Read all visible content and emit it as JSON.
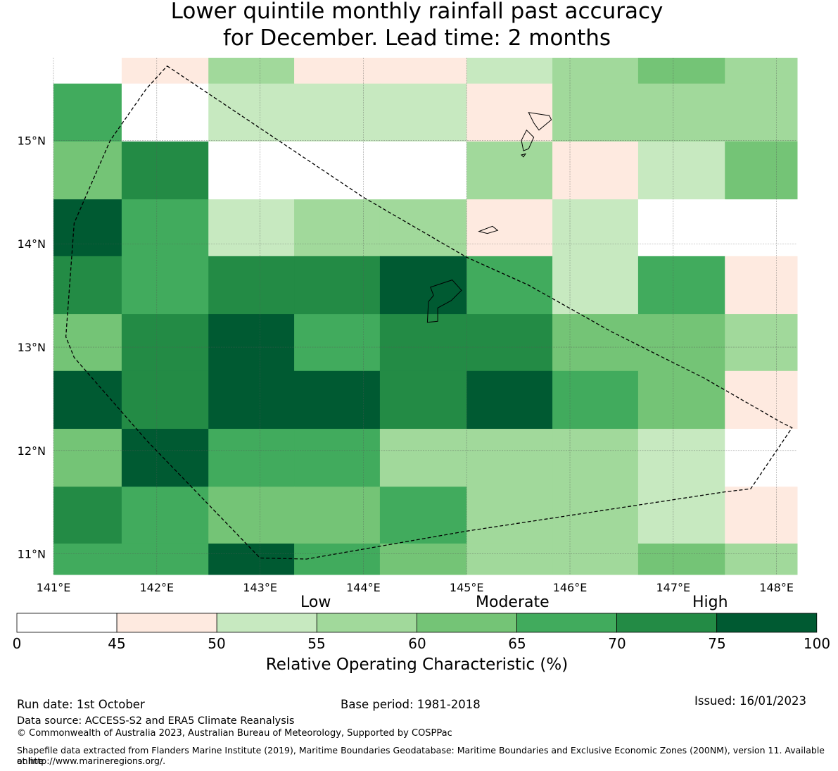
{
  "title": {
    "line1": "Lower quintile monthly rainfall past accuracy",
    "line2": "for December. Lead time: 2 months"
  },
  "map": {
    "lon_labels": [
      "141°E",
      "142°E",
      "143°E",
      "144°E",
      "145°E",
      "146°E",
      "147°E",
      "148°E"
    ],
    "lon_values": [
      141,
      142,
      143,
      144,
      145,
      146,
      147,
      148
    ],
    "lat_labels": [
      "15°N",
      "14°N",
      "13°N",
      "12°N",
      "11°N"
    ],
    "lat_values": [
      15,
      14,
      13,
      12,
      11
    ],
    "extent": {
      "lon": [
        141.0,
        148.2
      ],
      "lat": [
        10.8,
        15.8
      ]
    },
    "cell_lon_edges": [
      141.0,
      141.66,
      142.5,
      143.33,
      144.16,
      145.0,
      145.83,
      146.66,
      147.5,
      148.2
    ],
    "cell_lat_edges": [
      15.8,
      15.55,
      14.99,
      14.43,
      13.88,
      13.32,
      12.77,
      12.21,
      11.65,
      11.1,
      10.8
    ],
    "cells_roc": [
      [
        0,
        48,
        58,
        48,
        48,
        53,
        58,
        63,
        58
      ],
      [
        68,
        0,
        53,
        53,
        53,
        48,
        58,
        58,
        58
      ],
      [
        63,
        73,
        0,
        0,
        0,
        58,
        48,
        53,
        63
      ],
      [
        78,
        68,
        53,
        58,
        58,
        48,
        53,
        0,
        0
      ],
      [
        73,
        68,
        73,
        73,
        78,
        68,
        53,
        68,
        48
      ],
      [
        63,
        73,
        78,
        68,
        73,
        73,
        63,
        63,
        58
      ],
      [
        78,
        73,
        78,
        78,
        73,
        78,
        68,
        63,
        48
      ],
      [
        63,
        78,
        68,
        68,
        58,
        58,
        58,
        53,
        0
      ],
      [
        73,
        68,
        63,
        63,
        68,
        58,
        58,
        53,
        48
      ],
      [
        68,
        68,
        78,
        68,
        63,
        58,
        58,
        63,
        58
      ]
    ],
    "boundary_lonlat": [
      [
        142.1,
        15.72
      ],
      [
        144.0,
        14.45
      ],
      [
        145.0,
        13.87
      ],
      [
        145.6,
        13.6
      ],
      [
        146.4,
        13.15
      ],
      [
        147.3,
        12.7
      ],
      [
        148.05,
        12.27
      ],
      [
        148.15,
        12.22
      ],
      [
        147.75,
        11.63
      ],
      [
        147.5,
        11.6
      ],
      [
        145.0,
        11.22
      ],
      [
        143.45,
        10.95
      ],
      [
        143.0,
        10.96
      ],
      [
        141.9,
        12.1
      ],
      [
        141.2,
        12.9
      ],
      [
        141.12,
        13.1
      ],
      [
        141.2,
        14.2
      ],
      [
        141.55,
        15.0
      ],
      [
        141.9,
        15.5
      ],
      [
        142.1,
        15.72
      ]
    ],
    "islands_lonlat": [
      [
        [
          144.65,
          13.58
        ],
        [
          144.86,
          13.65
        ],
        [
          144.95,
          13.55
        ],
        [
          144.85,
          13.45
        ],
        [
          144.72,
          13.38
        ],
        [
          144.72,
          13.25
        ],
        [
          144.62,
          13.24
        ],
        [
          144.63,
          13.44
        ],
        [
          144.68,
          13.5
        ],
        [
          144.65,
          13.58
        ]
      ],
      [
        [
          145.6,
          15.27
        ],
        [
          145.65,
          15.17
        ],
        [
          145.7,
          15.1
        ],
        [
          145.82,
          15.2
        ],
        [
          145.8,
          15.24
        ],
        [
          145.6,
          15.27
        ]
      ],
      [
        [
          145.58,
          15.1
        ],
        [
          145.65,
          15.03
        ],
        [
          145.6,
          14.92
        ],
        [
          145.55,
          14.9
        ],
        [
          145.53,
          15.0
        ],
        [
          145.58,
          15.1
        ]
      ],
      [
        [
          145.53,
          14.86
        ],
        [
          145.57,
          14.87
        ],
        [
          145.55,
          14.84
        ],
        [
          145.53,
          14.86
        ]
      ],
      [
        [
          145.12,
          14.12
        ],
        [
          145.25,
          14.17
        ],
        [
          145.3,
          14.13
        ],
        [
          145.2,
          14.1
        ],
        [
          145.12,
          14.12
        ]
      ]
    ]
  },
  "colorbar": {
    "categories": [
      "Low",
      "Moderate",
      "High"
    ],
    "ticks": [
      "0",
      "45",
      "50",
      "55",
      "60",
      "65",
      "70",
      "75",
      "100"
    ],
    "bounds": [
      0,
      45,
      50,
      55,
      60,
      65,
      70,
      75,
      100
    ],
    "colors": [
      "#ffffff",
      "#feeae0",
      "#c7e9c0",
      "#a1d99b",
      "#74c476",
      "#41ab5d",
      "#238b45",
      "#005a32"
    ],
    "label": "Relative Operating Characteristic (%)"
  },
  "footer": {
    "run_date": "Run date: 1st October",
    "base_period": "Base period: 1981-2018",
    "issued": "Issued: 16/01/2023",
    "data_source": "Data source: ACCESS-S2 and ERA5 Climate Reanalysis",
    "copyright": "© Commonwealth of Australia 2023, Australian Bureau of Meteorology, Supported by COSPPac",
    "shapefile_1": "Shapefile data extracted from Flanders Marine Institute (2019), Maritime Boundaries Geodatabase: Maritime Boundaries and Exclusive Economic Zones (200NM), version 11. Available online",
    "shapefile_2": "at http://www.marineregions.org/."
  }
}
